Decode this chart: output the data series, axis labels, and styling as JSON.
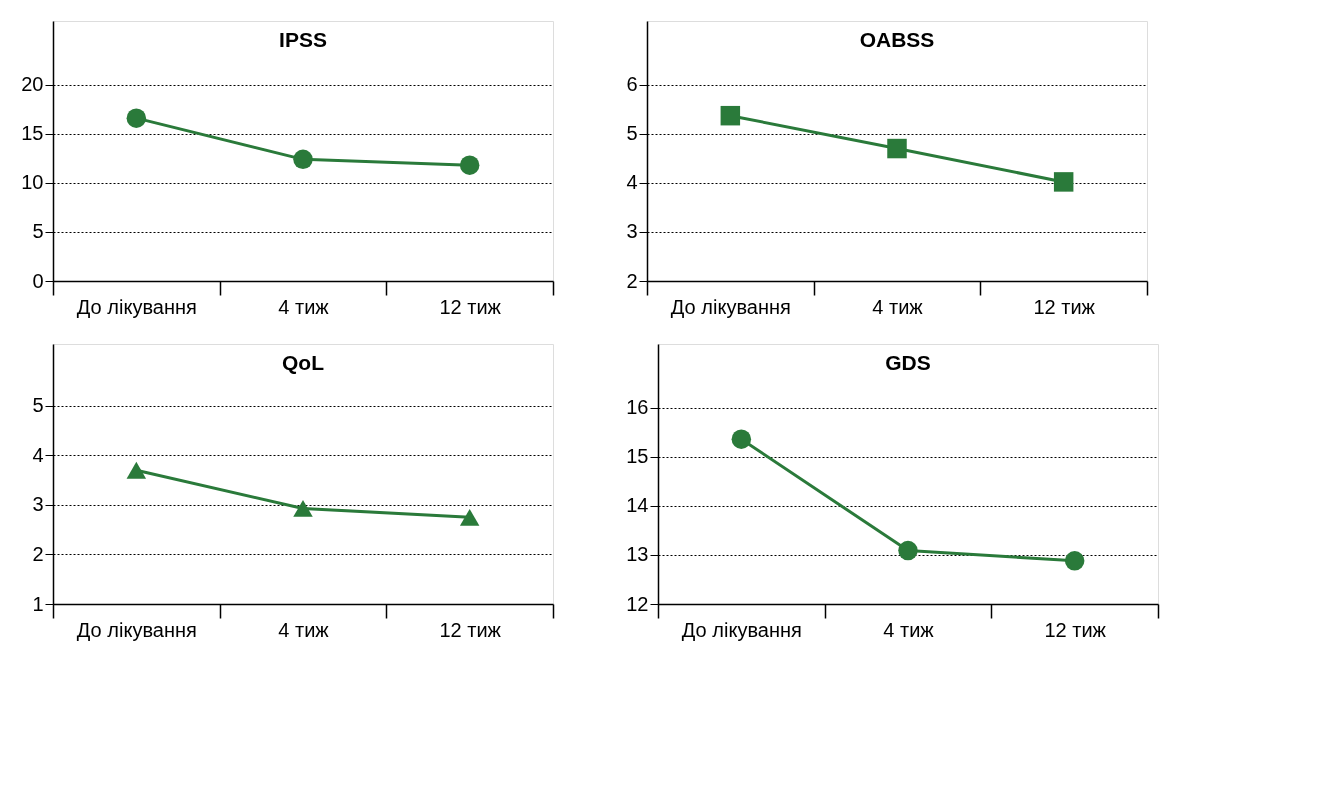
{
  "chart_data": [
    {
      "type": "line",
      "title": "IPSS",
      "categories": [
        "До лікування",
        "4 тиж",
        "12 тиж"
      ],
      "values": [
        16.6,
        12.4,
        11.8
      ],
      "color": "#2a7a3a",
      "marker": "circle",
      "ylim": [
        0,
        26.5
      ],
      "yticks": [
        0,
        5,
        10,
        15,
        20
      ],
      "grid": "y"
    },
    {
      "type": "line",
      "title": "OABSS",
      "categories": [
        "До лікування",
        "4 тиж",
        "12 тиж"
      ],
      "values": [
        5.37,
        4.7,
        4.02
      ],
      "color": "#2a7a3a",
      "marker": "square",
      "ylim": [
        2,
        7.3
      ],
      "yticks": [
        2,
        3,
        4,
        5,
        6
      ],
      "grid": "y"
    },
    {
      "type": "line",
      "title": "QoL",
      "categories": [
        "До лікування",
        "4 тиж",
        "12 тиж"
      ],
      "values": [
        3.7,
        2.93,
        2.75
      ],
      "color": "#2a7a3a",
      "marker": "triangle",
      "ylim": [
        1,
        6.25
      ],
      "yticks": [
        1,
        2,
        3,
        4,
        5
      ],
      "grid": "y"
    },
    {
      "type": "line",
      "title": "GDS",
      "categories": [
        "До лікування",
        "4 тиж",
        "12 тиж"
      ],
      "values": [
        15.36,
        13.09,
        12.88
      ],
      "color": "#2a7a3a",
      "marker": "circle",
      "ylim": [
        12,
        17.3
      ],
      "yticks": [
        12,
        13,
        14,
        15,
        16
      ],
      "grid": "y"
    }
  ]
}
